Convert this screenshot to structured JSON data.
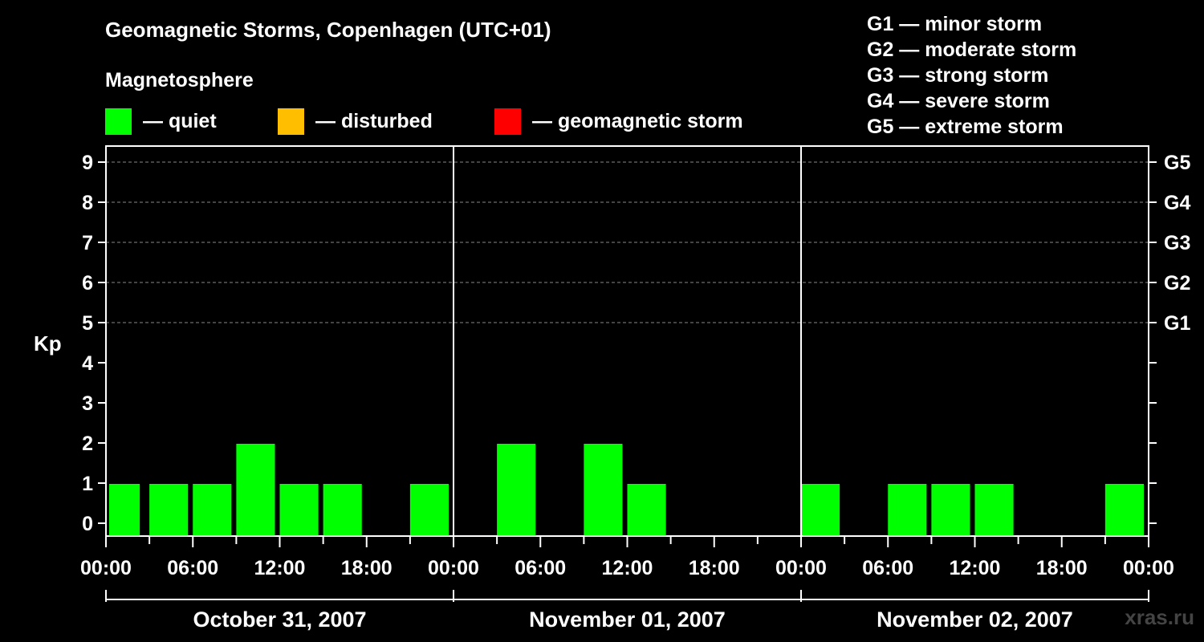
{
  "title": "Geomagnetic Storms, Copenhagen (UTC+01)",
  "magnetosphere": {
    "title": "Magnetosphere",
    "legend": [
      {
        "label": "— quiet",
        "color": "#00ff00"
      },
      {
        "label": "— disturbed",
        "color": "#ffbf00"
      },
      {
        "label": "— geomagnetic storm",
        "color": "#ff0000"
      }
    ]
  },
  "storm_scale": [
    "G1 — minor storm",
    "G2 — moderate storm",
    "G3 — strong storm",
    "G4 — severe storm",
    "G5 — extreme storm"
  ],
  "watermark": "xras.ru",
  "chart_data": {
    "type": "bar",
    "ylabel": "Kp",
    "ylim": [
      0,
      9
    ],
    "yticks": [
      0,
      1,
      2,
      3,
      4,
      5,
      6,
      7,
      8,
      9
    ],
    "right_axis_labels": [
      {
        "kp": 5,
        "label": "G1"
      },
      {
        "kp": 6,
        "label": "G2"
      },
      {
        "kp": 7,
        "label": "G3"
      },
      {
        "kp": 8,
        "label": "G4"
      },
      {
        "kp": 9,
        "label": "G5"
      }
    ],
    "x_tick_labels": [
      "00:00",
      "06:00",
      "12:00",
      "18:00",
      "00:00",
      "06:00",
      "12:00",
      "18:00",
      "00:00",
      "06:00",
      "12:00",
      "18:00",
      "00:00"
    ],
    "days": [
      "October 31, 2007",
      "November 01, 2007",
      "November 02, 2007"
    ],
    "interval_hours": 3,
    "series": [
      {
        "values": [
          1,
          1,
          1,
          2,
          1,
          1,
          0,
          1,
          0,
          2,
          0,
          2,
          1,
          0,
          0,
          0,
          1,
          0,
          1,
          1,
          1,
          0,
          0,
          1
        ],
        "color": "#00ff00"
      }
    ],
    "grid": "dashed at 5-9",
    "legend": "top"
  }
}
